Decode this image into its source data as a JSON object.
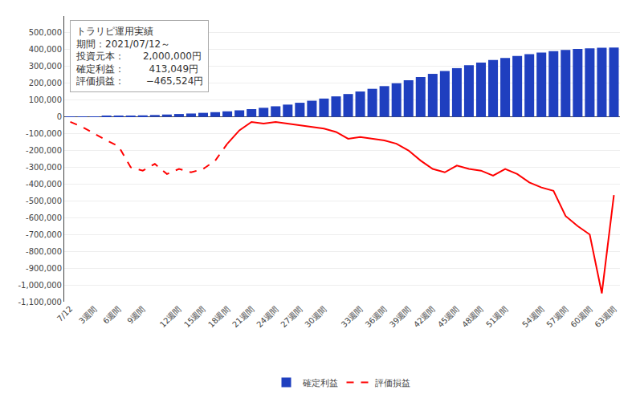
{
  "chart_data": {
    "type": "bar",
    "categories": [
      "7/12",
      null,
      "3週間",
      null,
      "6週間",
      null,
      "9週間",
      null,
      null,
      "12週間",
      null,
      "15週間",
      null,
      "18週間",
      null,
      "21週間",
      null,
      "24週間",
      null,
      "27週間",
      null,
      "30週間",
      null,
      null,
      "33週間",
      null,
      "36週間",
      null,
      "39週間",
      null,
      "42週間",
      null,
      "45週間",
      null,
      "48週間",
      null,
      "51週間",
      null,
      null,
      "54週間",
      null,
      "57週間",
      null,
      "60週間",
      null,
      "63週間"
    ],
    "series": [
      {
        "name": "確定利益",
        "type": "bar",
        "color": "#1F3FBF",
        "values": [
          500,
          1000,
          2000,
          3500,
          5000,
          7000,
          9000,
          11000,
          14000,
          17000,
          20000,
          24000,
          28000,
          33000,
          39000,
          46000,
          54000,
          63000,
          73000,
          84000,
          96000,
          109000,
          122000,
          136000,
          151000,
          167000,
          183000,
          200000,
          218000,
          237000,
          256000,
          273000,
          290000,
          307000,
          323000,
          338000,
          350000,
          362000,
          373000,
          383000,
          391000,
          398000,
          404000,
          408000,
          411000,
          413049
        ]
      },
      {
        "name": "評価損益",
        "type": "line",
        "color": "#FF0000",
        "line_style": "dashed",
        "values": [
          -30000,
          -60000,
          -100000,
          -140000,
          -175000,
          -300000,
          -320000,
          -280000,
          -340000,
          -310000,
          -330000,
          -310000,
          -260000,
          -160000,
          null,
          null,
          null,
          null,
          null,
          null,
          null,
          null,
          null,
          null,
          null,
          null,
          null,
          null,
          null,
          null,
          null,
          null,
          null,
          null,
          null,
          null,
          null,
          null,
          null,
          null,
          null,
          null,
          null,
          null,
          null,
          null
        ]
      },
      {
        "name": "評価損益",
        "type": "line",
        "color": "#FF0000",
        "line_style": "solid",
        "values": [
          null,
          null,
          null,
          null,
          null,
          null,
          null,
          null,
          null,
          null,
          null,
          null,
          null,
          -160000,
          -80000,
          -30000,
          -40000,
          -30000,
          -40000,
          -50000,
          -60000,
          -70000,
          -90000,
          -130000,
          -120000,
          -130000,
          -140000,
          -160000,
          -200000,
          -260000,
          -310000,
          -330000,
          -290000,
          -310000,
          -320000,
          -350000,
          -310000,
          -340000,
          -390000,
          -420000,
          -440000,
          -590000,
          -650000,
          -700000,
          -1050000,
          -465524
        ]
      }
    ],
    "ylim": [
      -1100000,
      600000
    ],
    "yticks": [
      {
        "value": 500000,
        "label": "500,000"
      },
      {
        "value": 400000,
        "label": "400,000"
      },
      {
        "value": 300000,
        "label": "300,000"
      },
      {
        "value": 200000,
        "label": "200,000"
      },
      {
        "value": 100000,
        "label": "100,000"
      },
      0,
      {
        "value": -100000,
        "label": "-100,000"
      },
      {
        "value": -200000,
        "label": "-200,000"
      },
      {
        "value": -300000,
        "label": "-300,000"
      },
      {
        "value": -400000,
        "label": "-400,000"
      },
      {
        "value": -500000,
        "label": "-500,000"
      },
      {
        "value": -600000,
        "label": "-600,000"
      },
      {
        "value": -700000,
        "label": "-700,000"
      },
      {
        "value": -800000,
        "label": "-800,000"
      },
      {
        "value": -900000,
        "label": "-900,000"
      },
      {
        "value": -1000000,
        "label": "-1,000,000"
      },
      {
        "value": -1100000,
        "label": "-1,100,000"
      }
    ],
    "grid": true,
    "legend": "bottom",
    "annotations": [
      "トラリピ運用実績\n期間：2021/07/12～\n投資元本：      2,000,000円\n確定利益：        413,049円\n評価損益：       −465,524円"
    ]
  }
}
